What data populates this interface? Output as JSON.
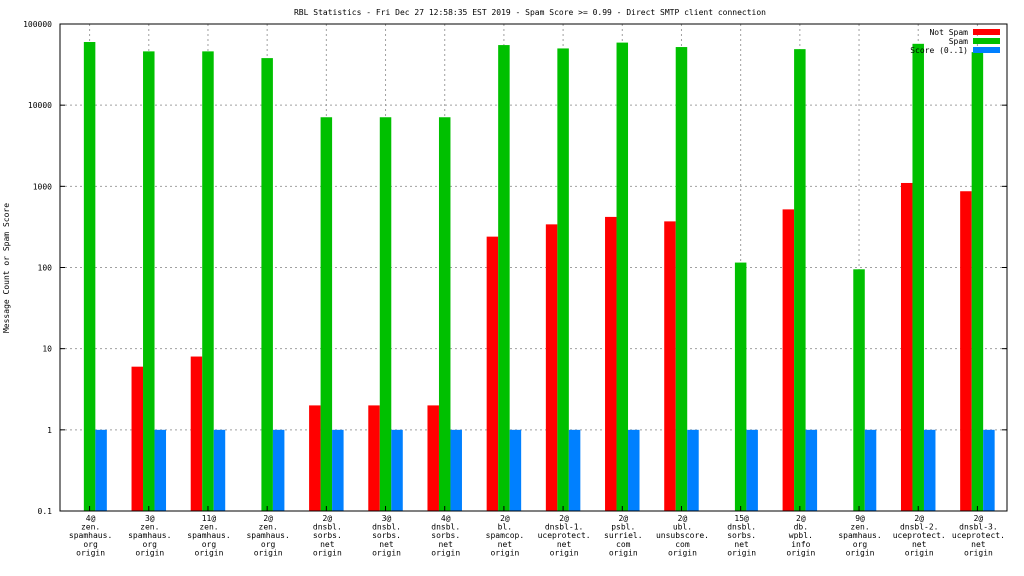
{
  "chart_data": {
    "type": "bar",
    "title": "RBL Statistics - Fri Dec 27 12:58:35 EST 2019 - Spam Score >= 0.99 - Direct SMTP client connection",
    "xlabel": "",
    "ylabel": "Message Count or Spam Score",
    "yscale": "log",
    "ylim": [
      0.1,
      100000
    ],
    "yticks": [
      "0.1",
      "1",
      "10",
      "100",
      "1000",
      "10000",
      "100000"
    ],
    "grid": true,
    "legend_position": "top-right",
    "categories": [
      [
        "4@",
        "zen.",
        "spamhaus.",
        "org",
        "origin"
      ],
      [
        "3@",
        "zen.",
        "spamhaus.",
        "org",
        "origin"
      ],
      [
        "11@",
        "zen.",
        "spamhaus.",
        "org",
        "origin"
      ],
      [
        "2@",
        "zen.",
        "spamhaus.",
        "org",
        "origin"
      ],
      [
        "2@",
        "dnsbl.",
        "sorbs.",
        "net",
        "origin"
      ],
      [
        "3@",
        "dnsbl.",
        "sorbs.",
        "net",
        "origin"
      ],
      [
        "4@",
        "dnsbl.",
        "sorbs.",
        "net",
        "origin"
      ],
      [
        "2@",
        "bl.",
        "spamcop.",
        "net",
        "origin"
      ],
      [
        "2@",
        "dnsbl-1.",
        "uceprotect.",
        "net",
        "origin"
      ],
      [
        "2@",
        "psbl.",
        "surriel.",
        "com",
        "origin"
      ],
      [
        "2@",
        "ubl.",
        "unsubscore.",
        "com",
        "origin"
      ],
      [
        "15@",
        "dnsbl.",
        "sorbs.",
        "net",
        "origin"
      ],
      [
        "2@",
        "db.",
        "wpbl.",
        "info",
        "origin"
      ],
      [
        "9@",
        "zen.",
        "spamhaus.",
        "org",
        "origin"
      ],
      [
        "2@",
        "dnsbl-2.",
        "uceprotect.",
        "net",
        "origin"
      ],
      [
        "2@",
        "dnsbl-3.",
        "uceprotect.",
        "net",
        "origin"
      ]
    ],
    "series": [
      {
        "name": "Not Spam",
        "color": "#ff0000",
        "values": [
          null,
          6,
          8,
          null,
          2,
          2,
          2,
          240,
          340,
          420,
          370,
          null,
          520,
          null,
          1100,
          870
        ]
      },
      {
        "name": "Spam",
        "color": "#00c000",
        "values": [
          60000,
          46000,
          46000,
          38000,
          7100,
          7100,
          7100,
          55000,
          50000,
          59000,
          52000,
          115,
          49000,
          95,
          57000,
          45000
        ]
      },
      {
        "name": "Score (0..1)",
        "color": "#0080ff",
        "values": [
          1,
          1,
          1,
          1,
          1,
          1,
          1,
          1,
          1,
          1,
          1,
          1,
          1,
          1,
          1,
          1
        ]
      }
    ]
  }
}
